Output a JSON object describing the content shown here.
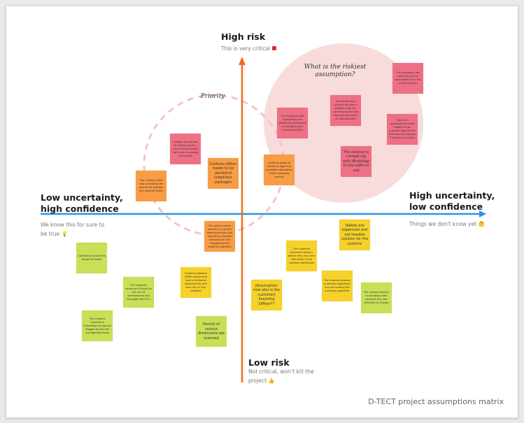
{
  "axes": {
    "top": {
      "title": "High risk",
      "subtitle": "This is very critical",
      "icon": "red-alarm-icon"
    },
    "bottom": {
      "title": "Low risk",
      "subtitle": "Not critical, won't kill the project",
      "icon": "thumbs-up-icon"
    },
    "left": {
      "title": "Low uncertainty, high confidence",
      "subtitle": "We know this for sure to be true",
      "icon": "lightbulb-icon"
    },
    "right": {
      "title": "High uncertainty, low confidence",
      "subtitle": "Things we don't know yet",
      "icon": "thinking-face-icon"
    }
  },
  "colors": {
    "vertical_axis": "#f36a1d",
    "horizontal_axis": "#2f93e6",
    "riskiest_circle": "#f8dcdc",
    "priority_circle": "#f5c4c8",
    "red": "#ef6f84",
    "orange": "#f99c44",
    "yellow": "#f5d12a",
    "green": "#c8df56"
  },
  "labels": {
    "riskiest": "What is the riskiest assumption?",
    "priority": "Priority"
  },
  "notes": [
    {
      "color": "red",
      "text": "Lodging permit was to control parcels · from through single leg terms in passing and profile"
    },
    {
      "color": "red",
      "text": "The inspector and supervisors are potentially interested in changing their current workflow"
    },
    {
      "color": "red",
      "text": "The actual users actually do have a problem with the current process and they are hoping for an improvement"
    },
    {
      "color": "red",
      "text": "The customers are willing to rely on automated AI on the control process"
    },
    {
      "color": "red",
      "text": "There is a development stage subject to the customs department that allow to improve it quality & quantity"
    },
    {
      "color": "red",
      "text": "The solution is compat ing with WhatsApp in the suffix of use"
    },
    {
      "color": "orange",
      "text": "The customs need help controlling the parcels for taxation and national safety"
    },
    {
      "color": "orange",
      "text": "Customs officer needs to be alerted of suspicious packages"
    },
    {
      "color": "orange",
      "text": "Customs needs to adhere to legal and legislative regulations while managing parcels"
    },
    {
      "color": "orange",
      "text": "The parcel control process is currently relaying parcels that should be checked because the risk management is based on statistics"
    },
    {
      "color": "yellow",
      "text": "Customs software (DMS) should only have a limitation (attached to) end from key or four software"
    },
    {
      "color": "yellow",
      "text": "(Assumption: how who is the customer) Scanning Officer??"
    },
    {
      "color": "yellow",
      "text": "The inspector personas needs a device they can carry with them in the customs warehouse"
    },
    {
      "color": "yellow",
      "text": "The customs process is already digitalised, but just missing the scanning capability"
    },
    {
      "color": "yellow",
      "text": "Tablets are expensive and not feasible solution for the customs"
    },
    {
      "color": "green",
      "text": "Controlling by parcels should be faster"
    },
    {
      "color": "green",
      "text": "The inspector personas is fluent on the use of smartphones and struggles with PCs"
    },
    {
      "color": "green",
      "text": "The customs inspector's knowledge on parcels flagged by the risk management team"
    },
    {
      "color": "green",
      "text": "Parcels of various dimensions are scanned"
    },
    {
      "color": "green",
      "text": "The current scanner is not being used because they are reluctant to change"
    }
  ],
  "footer": "D-TECT project assumptions matrix"
}
